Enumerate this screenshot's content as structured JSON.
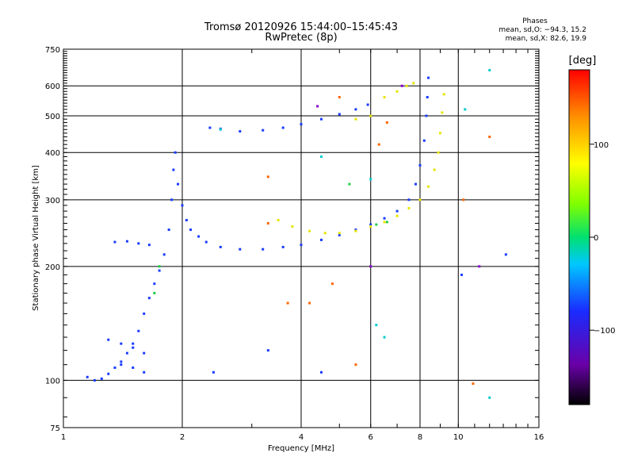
{
  "header": {
    "title": "Tromsø 20120926 15:44:00–15:45:43",
    "subtitle": "RwPretec (8p)"
  },
  "phases": {
    "title": "Phases",
    "line_o": "mean, sd,O: −94.3, 15.2",
    "line_x": "mean, sd,X:  82.6, 19.9"
  },
  "colorbar": {
    "label": "[deg]",
    "ticks": [
      {
        "value": 100,
        "label": "100"
      },
      {
        "value": 0,
        "label": "0"
      },
      {
        "value": -100,
        "label": "−100"
      }
    ],
    "range": [
      -180,
      180
    ]
  },
  "chart_data": {
    "type": "scatter",
    "title": "Tromsø 20120926 15:44:00–15:45:43",
    "subtitle": "RwPretec (8p)",
    "xlabel": "Frequency [MHz]",
    "ylabel": "Stationary phase Virtual Height [km]",
    "xscale": "log2",
    "yscale": "log",
    "xlim": [
      1,
      16
    ],
    "ylim": [
      75,
      750
    ],
    "x_ticks": [
      {
        "value": 1,
        "label": "1"
      },
      {
        "value": 2,
        "label": "2"
      },
      {
        "value": 4,
        "label": "4"
      },
      {
        "value": 6,
        "label": "6"
      },
      {
        "value": 8,
        "label": "8"
      },
      {
        "value": 10,
        "label": "10"
      },
      {
        "value": 16,
        "label": "16"
      }
    ],
    "y_ticks": [
      {
        "value": 75,
        "label": "75"
      },
      {
        "value": 100,
        "label": "100"
      },
      {
        "value": 200,
        "label": "200"
      },
      {
        "value": 300,
        "label": "300"
      },
      {
        "value": 400,
        "label": "400"
      },
      {
        "value": 500,
        "label": "500"
      },
      {
        "value": 600,
        "label": "600"
      },
      {
        "value": 750,
        "label": "750"
      }
    ],
    "grid": true,
    "series": [
      {
        "color": "#1a3cff",
        "points": [
          [
            1.15,
            102
          ],
          [
            1.2,
            100
          ],
          [
            1.25,
            101
          ],
          [
            1.3,
            104
          ],
          [
            1.35,
            108
          ],
          [
            1.4,
            112
          ],
          [
            1.45,
            118
          ],
          [
            1.5,
            125
          ],
          [
            1.55,
            135
          ],
          [
            1.6,
            150
          ],
          [
            1.65,
            165
          ],
          [
            1.7,
            180
          ],
          [
            1.75,
            195
          ],
          [
            1.8,
            215
          ],
          [
            1.85,
            250
          ],
          [
            1.88,
            300
          ],
          [
            1.9,
            360
          ],
          [
            1.92,
            400
          ],
          [
            1.95,
            330
          ],
          [
            2.0,
            290
          ],
          [
            2.05,
            265
          ],
          [
            2.1,
            250
          ],
          [
            2.2,
            240
          ],
          [
            2.3,
            232
          ],
          [
            2.5,
            225
          ],
          [
            2.8,
            222
          ],
          [
            3.2,
            222
          ],
          [
            3.6,
            225
          ],
          [
            4.0,
            228
          ],
          [
            4.5,
            235
          ],
          [
            5.0,
            242
          ],
          [
            5.5,
            250
          ],
          [
            6.0,
            258
          ],
          [
            6.5,
            268
          ],
          [
            7.0,
            280
          ],
          [
            7.5,
            300
          ],
          [
            7.8,
            330
          ],
          [
            8.0,
            370
          ],
          [
            8.2,
            430
          ],
          [
            8.3,
            500
          ],
          [
            8.35,
            560
          ],
          [
            8.4,
            630
          ],
          [
            1.3,
            128
          ],
          [
            1.4,
            125
          ],
          [
            1.5,
            122
          ],
          [
            1.6,
            118
          ],
          [
            1.4,
            110
          ],
          [
            1.5,
            108
          ],
          [
            1.6,
            105
          ],
          [
            1.35,
            232
          ],
          [
            1.45,
            233
          ],
          [
            1.55,
            230
          ],
          [
            1.65,
            228
          ],
          [
            2.35,
            465
          ],
          [
            2.5,
            462
          ],
          [
            2.8,
            455
          ],
          [
            3.2,
            458
          ],
          [
            3.6,
            465
          ],
          [
            4.0,
            475
          ],
          [
            4.5,
            490
          ],
          [
            5.0,
            505
          ],
          [
            5.5,
            520
          ],
          [
            5.9,
            535
          ],
          [
            2.4,
            105
          ],
          [
            3.3,
            120
          ],
          [
            4.5,
            105
          ],
          [
            10.2,
            190
          ],
          [
            13.2,
            215
          ]
        ]
      },
      {
        "color": "#e6e600",
        "points": [
          [
            3.5,
            265
          ],
          [
            3.8,
            255
          ],
          [
            4.2,
            248
          ],
          [
            4.6,
            245
          ],
          [
            5.0,
            245
          ],
          [
            5.5,
            248
          ],
          [
            6.0,
            255
          ],
          [
            6.5,
            262
          ],
          [
            7.0,
            272
          ],
          [
            7.5,
            285
          ],
          [
            8.0,
            300
          ],
          [
            8.4,
            325
          ],
          [
            8.7,
            360
          ],
          [
            8.9,
            400
          ],
          [
            9.0,
            450
          ],
          [
            9.1,
            510
          ],
          [
            9.2,
            570
          ],
          [
            6.5,
            560
          ],
          [
            7.0,
            580
          ],
          [
            7.4,
            600
          ],
          [
            7.7,
            610
          ],
          [
            5.5,
            490
          ],
          [
            6.0,
            500
          ]
        ]
      },
      {
        "color": "#22cc44",
        "points": [
          [
            1.7,
            170
          ],
          [
            1.75,
            200
          ],
          [
            6.2,
            258
          ],
          [
            6.6,
            262
          ],
          [
            4.5,
            390
          ],
          [
            5.3,
            330
          ]
        ]
      },
      {
        "color": "#ff6600",
        "points": [
          [
            3.3,
            345
          ],
          [
            3.7,
            160
          ],
          [
            4.2,
            160
          ],
          [
            4.8,
            180
          ],
          [
            5.5,
            110
          ],
          [
            6.3,
            420
          ],
          [
            6.6,
            480
          ],
          [
            10.3,
            300
          ],
          [
            10.9,
            98
          ],
          [
            12.0,
            440
          ],
          [
            5.0,
            560
          ],
          [
            3.3,
            260
          ]
        ]
      },
      {
        "color": "#00cccc",
        "points": [
          [
            4.5,
            390
          ],
          [
            6.0,
            340
          ],
          [
            6.2,
            140
          ],
          [
            10.4,
            520
          ],
          [
            12.0,
            90
          ],
          [
            12.0,
            660
          ],
          [
            6.5,
            130
          ],
          [
            2.5,
            460
          ]
        ]
      },
      {
        "color": "#8800cc",
        "points": [
          [
            4.4,
            530
          ],
          [
            6.0,
            200
          ],
          [
            7.2,
            600
          ],
          [
            11.3,
            200
          ]
        ]
      }
    ]
  }
}
